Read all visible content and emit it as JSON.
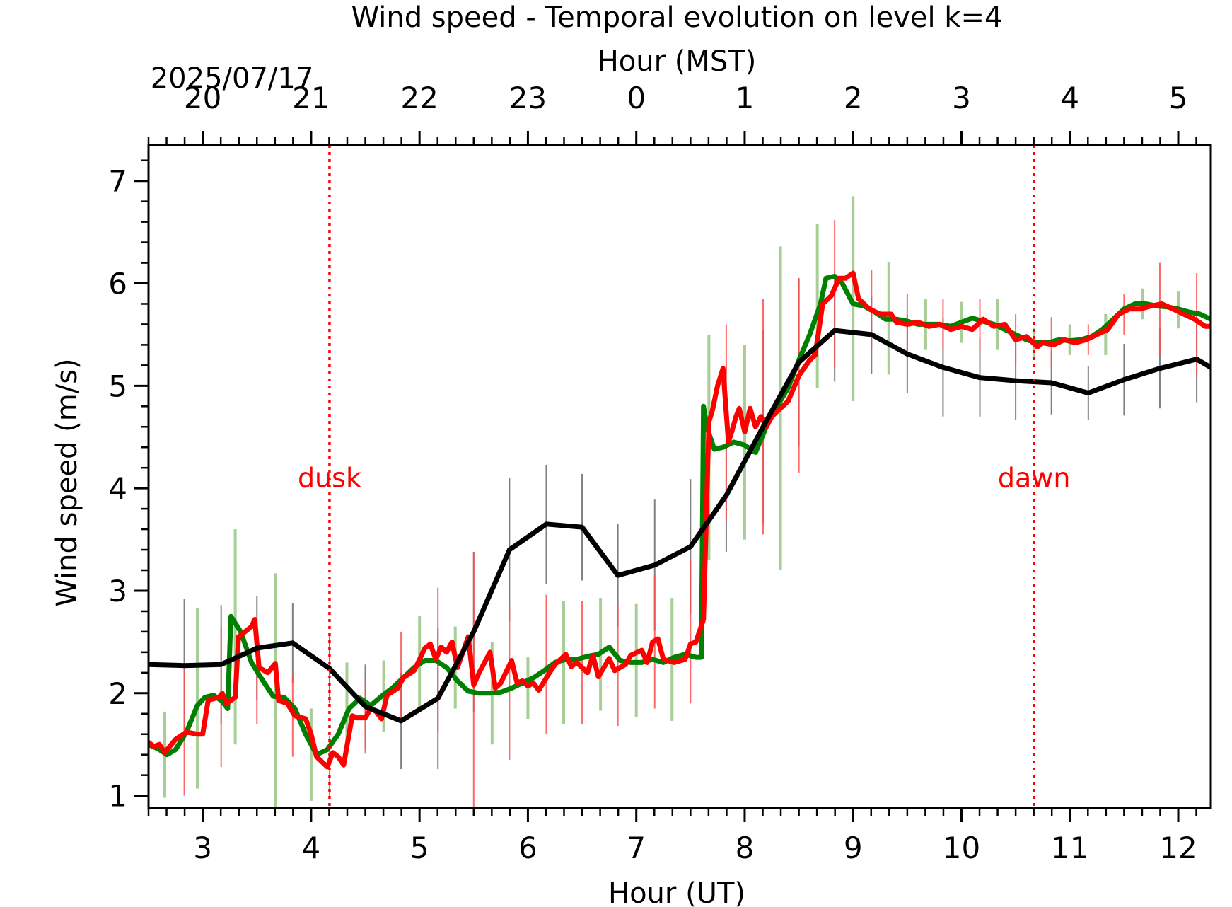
{
  "chart_data": {
    "type": "line",
    "title": "Wind speed - Temporal evolution on level k=4",
    "xlabel": "Hour (UT)",
    "ylabel": "Wind speed (m/s)",
    "top_xlabel": "Hour (MST)",
    "date_label": "2025/07/17",
    "xlim": [
      2.5,
      12.3
    ],
    "ylim": [
      0.88,
      7.35
    ],
    "x_ticks": [
      3,
      4,
      5,
      6,
      7,
      8,
      9,
      10,
      11,
      12
    ],
    "x_tick_labels": [
      "3",
      "4",
      "5",
      "6",
      "7",
      "8",
      "9",
      "10",
      "11",
      "12"
    ],
    "y_ticks": [
      1,
      2,
      3,
      4,
      5,
      6,
      7
    ],
    "y_tick_labels": [
      "1",
      "2",
      "3",
      "4",
      "5",
      "6",
      "7"
    ],
    "top_ticks_ut": [
      3,
      4,
      5,
      6,
      7,
      8,
      9,
      10,
      11,
      12
    ],
    "top_tick_labels": [
      "20",
      "21",
      "22",
      "23",
      "0",
      "1",
      "2",
      "3",
      "4",
      "5"
    ],
    "grid": false,
    "annotations": [
      {
        "label": "dusk",
        "x": 4.17,
        "y": 4.1,
        "color": "#ff0000"
      },
      {
        "label": "dawn",
        "x": 10.67,
        "y": 4.1,
        "color": "#ff0000"
      }
    ],
    "series": [
      {
        "color": "#000000",
        "x": [
          2.5,
          2.83,
          3.17,
          3.5,
          3.83,
          4.17,
          4.5,
          4.83,
          5.17,
          5.5,
          5.83,
          6.17,
          6.5,
          6.83,
          7.17,
          7.5,
          7.83,
          8.17,
          8.5,
          8.83,
          9.17,
          9.5,
          9.83,
          10.17,
          10.5,
          10.83,
          11.17,
          11.5,
          11.83,
          12.17,
          12.3
        ],
        "y": [
          2.28,
          2.27,
          2.28,
          2.44,
          2.49,
          2.24,
          1.87,
          1.73,
          1.95,
          2.6,
          3.4,
          3.65,
          3.62,
          3.15,
          3.25,
          3.43,
          3.93,
          4.6,
          5.23,
          5.54,
          5.5,
          5.31,
          5.18,
          5.08,
          5.05,
          5.03,
          4.93,
          5.06,
          5.17,
          5.26,
          5.18
        ],
        "errors": [
          0,
          0.65,
          0.58,
          0.51,
          0.39,
          0.34,
          0.41,
          0.47,
          0.69,
          0.78,
          0.7,
          0.58,
          0.52,
          0.5,
          0.64,
          0.66,
          0.55,
          0.94,
          0.82,
          0.5,
          0.38,
          0.38,
          0.48,
          0.38,
          0.38,
          0.31,
          0.26,
          0.35,
          0.39,
          0.42,
          0
        ]
      },
      {
        "color": "#008000",
        "x": [
          2.5,
          2.6,
          2.67,
          2.75,
          2.85,
          2.95,
          3.02,
          3.1,
          3.18,
          3.23,
          3.26,
          3.35,
          3.45,
          3.55,
          3.65,
          3.75,
          3.85,
          3.95,
          4.05,
          4.15,
          4.25,
          4.35,
          4.45,
          4.55,
          4.65,
          4.75,
          4.85,
          4.95,
          5.05,
          5.15,
          5.25,
          5.35,
          5.45,
          5.55,
          5.65,
          5.75,
          5.85,
          5.95,
          6.05,
          6.15,
          6.25,
          6.35,
          6.45,
          6.55,
          6.65,
          6.75,
          6.85,
          6.95,
          7.05,
          7.15,
          7.25,
          7.35,
          7.45,
          7.55,
          7.6,
          7.62,
          7.65,
          7.72,
          7.8,
          7.9,
          8.0,
          8.1,
          8.2,
          8.3,
          8.4,
          8.5,
          8.6,
          8.7,
          8.75,
          8.83,
          8.9,
          9.0,
          9.1,
          9.2,
          9.3,
          9.4,
          9.5,
          9.6,
          9.7,
          9.8,
          9.9,
          10.0,
          10.1,
          10.2,
          10.3,
          10.4,
          10.5,
          10.6,
          10.7,
          10.8,
          10.9,
          11.0,
          11.1,
          11.2,
          11.3,
          11.4,
          11.5,
          11.6,
          11.7,
          11.8,
          11.9,
          12.0,
          12.1,
          12.2,
          12.3
        ],
        "y": [
          1.5,
          1.45,
          1.4,
          1.45,
          1.62,
          1.88,
          1.96,
          1.98,
          1.92,
          1.85,
          2.75,
          2.6,
          2.3,
          2.13,
          1.97,
          1.96,
          1.85,
          1.6,
          1.4,
          1.45,
          1.6,
          1.85,
          1.95,
          1.88,
          1.97,
          2.05,
          2.15,
          2.25,
          2.32,
          2.32,
          2.25,
          2.12,
          2.02,
          2.0,
          2.0,
          2.01,
          2.05,
          2.1,
          2.15,
          2.22,
          2.3,
          2.33,
          2.33,
          2.36,
          2.38,
          2.45,
          2.32,
          2.3,
          2.3,
          2.33,
          2.3,
          2.35,
          2.38,
          2.35,
          2.35,
          4.8,
          4.6,
          4.38,
          4.4,
          4.45,
          4.42,
          4.35,
          4.6,
          4.8,
          4.98,
          5.25,
          5.5,
          5.8,
          6.05,
          6.07,
          6.0,
          5.8,
          5.78,
          5.72,
          5.65,
          5.65,
          5.63,
          5.6,
          5.6,
          5.6,
          5.58,
          5.62,
          5.66,
          5.63,
          5.6,
          5.55,
          5.5,
          5.45,
          5.42,
          5.42,
          5.45,
          5.44,
          5.45,
          5.48,
          5.55,
          5.65,
          5.75,
          5.8,
          5.8,
          5.78,
          5.77,
          5.75,
          5.72,
          5.7,
          5.65
        ],
        "errors": [
          0,
          0.45,
          0.45,
          0.45,
          0.5,
          0.85,
          0.9,
          0.9,
          0.9,
          0.9,
          0.8,
          1.05,
          0.8,
          0.95,
          1.2,
          0.9,
          0.95,
          0.45,
          0.45,
          0.45,
          0.45,
          0.45,
          0.45,
          0.35,
          0.35,
          0.4,
          0.4,
          0.4,
          0.4,
          0.4,
          0.4,
          0.4,
          0.5,
          0.5,
          0.45,
          0.3,
          0.3,
          0.3,
          0.4,
          0.4,
          0.5,
          0.55,
          0.55,
          0.55,
          0.5,
          0.5,
          0.55,
          0.55,
          0.55,
          0.55,
          0.55,
          0.55,
          0.55,
          0.55,
          0.55,
          0.7,
          0.8,
          0.95,
          0.95,
          0.95,
          0.95,
          1.1,
          1.2,
          1.35,
          1.5,
          1.45,
          1.3,
          0.9,
          0.7,
          0.65,
          0.6,
          0.5,
          0.45,
          0.45,
          0.55,
          0.55,
          0.5,
          0.4,
          0.3,
          0.3,
          0.3,
          0.2,
          0.2,
          0.2,
          0.25,
          0.25,
          0.25,
          0.25,
          0.25,
          0.15,
          0.15,
          0.15,
          0.15,
          0.15,
          0.15,
          0.15,
          0.15,
          0.15,
          0.15,
          0.15,
          0.15,
          0.15,
          0.15,
          0.15,
          0.15
        ],
        "error_x": [
          2.65,
          2.95,
          3.3,
          3.67,
          4.0,
          4.33,
          4.67,
          5.0,
          5.33,
          5.67,
          6.0,
          6.33,
          6.67,
          7.0,
          7.33,
          7.67,
          8.0,
          8.33,
          8.67,
          9.0,
          9.33,
          9.67,
          10.0,
          10.33,
          10.67,
          11.0,
          11.33,
          11.67,
          12.0
        ],
        "error_y": [
          1.4,
          1.95,
          2.55,
          1.97,
          1.4,
          1.85,
          1.97,
          2.3,
          2.25,
          2.0,
          2.05,
          2.3,
          2.38,
          2.32,
          2.33,
          4.4,
          4.45,
          4.78,
          5.78,
          5.85,
          5.66,
          5.6,
          5.62,
          5.6,
          5.42,
          5.45,
          5.5,
          5.8,
          5.74
        ],
        "error_h": [
          0.42,
          0.88,
          1.05,
          1.2,
          0.45,
          0.45,
          0.35,
          0.45,
          0.4,
          0.5,
          0.3,
          0.6,
          0.55,
          0.55,
          0.6,
          1.1,
          0.95,
          1.58,
          0.8,
          1.0,
          0.55,
          0.25,
          0.2,
          0.25,
          0.15,
          0.15,
          0.2,
          0.15,
          0.18
        ]
      },
      {
        "color": "#ff0000",
        "x": [
          2.5,
          2.55,
          2.6,
          2.65,
          2.75,
          2.85,
          2.95,
          3.0,
          3.05,
          3.15,
          3.18,
          3.22,
          3.3,
          3.33,
          3.45,
          3.48,
          3.52,
          3.6,
          3.67,
          3.7,
          3.78,
          3.85,
          3.95,
          4.0,
          4.05,
          4.15,
          4.2,
          4.25,
          4.3,
          4.38,
          4.42,
          4.5,
          4.55,
          4.6,
          4.65,
          4.7,
          4.8,
          4.85,
          4.95,
          5.0,
          5.05,
          5.1,
          5.15,
          5.2,
          5.25,
          5.3,
          5.35,
          5.45,
          5.5,
          5.55,
          5.65,
          5.7,
          5.75,
          5.85,
          5.9,
          5.95,
          6.0,
          6.05,
          6.1,
          6.2,
          6.25,
          6.35,
          6.4,
          6.45,
          6.55,
          6.6,
          6.65,
          6.75,
          6.8,
          6.9,
          6.95,
          7.05,
          7.1,
          7.15,
          7.2,
          7.25,
          7.35,
          7.45,
          7.5,
          7.55,
          7.62,
          7.67,
          7.7,
          7.75,
          7.8,
          7.85,
          7.88,
          7.92,
          7.95,
          8.0,
          8.05,
          8.1,
          8.15,
          8.2,
          8.25,
          8.3,
          8.4,
          8.5,
          8.6,
          8.65,
          8.72,
          8.8,
          8.87,
          8.93,
          9.0,
          9.05,
          9.15,
          9.25,
          9.35,
          9.4,
          9.5,
          9.6,
          9.7,
          9.8,
          9.9,
          10.0,
          10.1,
          10.2,
          10.3,
          10.4,
          10.5,
          10.6,
          10.7,
          10.75,
          10.85,
          10.95,
          11.05,
          11.15,
          11.25,
          11.35,
          11.45,
          11.55,
          11.65,
          11.75,
          11.85,
          11.95,
          12.05,
          12.15,
          12.25,
          12.3
        ],
        "y": [
          1.52,
          1.48,
          1.5,
          1.42,
          1.55,
          1.62,
          1.6,
          1.6,
          1.93,
          1.96,
          2.0,
          1.9,
          1.96,
          2.55,
          2.65,
          2.72,
          2.25,
          2.2,
          2.29,
          1.93,
          1.9,
          1.78,
          1.75,
          1.6,
          1.38,
          1.28,
          1.42,
          1.38,
          1.3,
          1.78,
          1.76,
          1.76,
          1.85,
          1.82,
          1.75,
          1.98,
          2.05,
          2.15,
          2.22,
          2.33,
          2.44,
          2.48,
          2.33,
          2.45,
          2.4,
          2.5,
          2.25,
          2.55,
          2.08,
          2.2,
          2.4,
          2.05,
          2.1,
          2.32,
          2.1,
          2.12,
          2.07,
          2.1,
          2.03,
          2.2,
          2.28,
          2.38,
          2.26,
          2.3,
          2.2,
          2.37,
          2.16,
          2.34,
          2.22,
          2.28,
          2.37,
          2.42,
          2.3,
          2.5,
          2.53,
          2.33,
          2.3,
          2.33,
          2.48,
          2.5,
          2.72,
          4.65,
          4.75,
          5.0,
          5.17,
          4.45,
          4.55,
          4.7,
          4.78,
          4.55,
          4.78,
          4.6,
          4.7,
          4.6,
          4.7,
          4.75,
          4.85,
          5.1,
          5.25,
          5.3,
          5.8,
          5.88,
          6.05,
          6.05,
          6.1,
          5.85,
          5.75,
          5.7,
          5.7,
          5.62,
          5.6,
          5.62,
          5.58,
          5.6,
          5.55,
          5.58,
          5.55,
          5.65,
          5.58,
          5.6,
          5.45,
          5.48,
          5.38,
          5.42,
          5.4,
          5.45,
          5.42,
          5.45,
          5.5,
          5.55,
          5.7,
          5.75,
          5.75,
          5.78,
          5.8,
          5.75,
          5.7,
          5.65,
          5.58,
          5.58
        ],
        "error_x": [
          2.83,
          3.17,
          3.5,
          3.83,
          4.17,
          4.5,
          4.83,
          5.17,
          5.5,
          5.83,
          6.17,
          6.5,
          6.83,
          7.17,
          7.5,
          7.83,
          8.17,
          8.5,
          8.83,
          9.17,
          9.5,
          9.83,
          10.17,
          10.5,
          10.83,
          11.17,
          11.5,
          11.83,
          12.17
        ],
        "error_y": [
          1.62,
          1.96,
          2.2,
          1.78,
          1.28,
          1.76,
          2.15,
          2.33,
          2.08,
          2.1,
          2.28,
          2.3,
          2.28,
          2.5,
          2.6,
          4.65,
          4.7,
          5.1,
          5.9,
          5.75,
          5.6,
          5.6,
          5.6,
          5.45,
          5.42,
          5.45,
          5.7,
          5.75,
          5.6
        ],
        "error_h": [
          0.62,
          0.68,
          0.5,
          0.4,
          0.3,
          0.35,
          0.45,
          0.7,
          1.3,
          0.75,
          0.68,
          0.6,
          0.6,
          0.65,
          0.7,
          0.95,
          1.15,
          0.95,
          0.72,
          0.38,
          0.3,
          0.25,
          0.25,
          0.25,
          0.25,
          0.15,
          0.2,
          0.45,
          0.5
        ]
      }
    ]
  }
}
